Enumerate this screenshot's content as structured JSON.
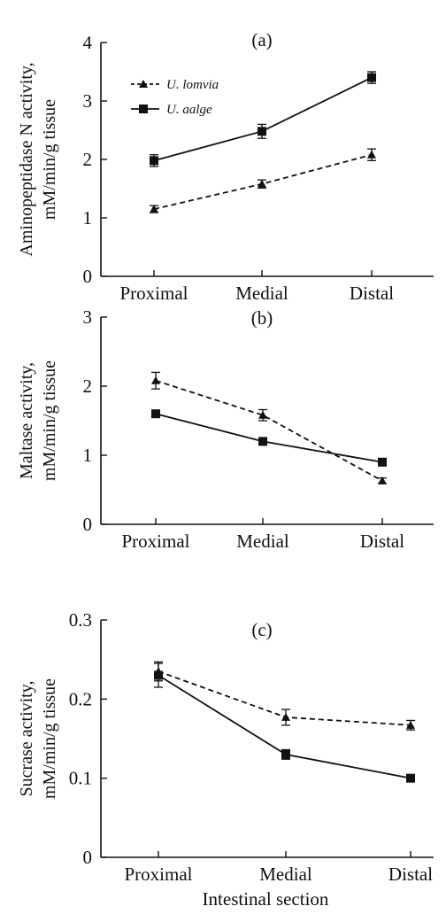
{
  "chart_data": [
    {
      "type": "line",
      "panel_label": "(a)",
      "categories": [
        "Proximal",
        "Medial",
        "Distal"
      ],
      "ylabel_lines": [
        "Aminopeptidase N activity,",
        "mM/min/g tissue"
      ],
      "xlabel": "",
      "ylim": [
        0,
        4
      ],
      "yticks": [
        "0",
        "1",
        "2",
        "3",
        "4"
      ],
      "legend": {
        "position": "top-left"
      },
      "series": [
        {
          "name": "U. lomvia",
          "marker": "triangle",
          "dash": "dashed",
          "values": [
            1.15,
            1.58,
            2.08
          ],
          "errors": [
            0.06,
            0.07,
            0.1
          ]
        },
        {
          "name": "U. aalge",
          "marker": "square",
          "dash": "solid",
          "values": [
            1.98,
            2.48,
            3.4
          ],
          "errors": [
            0.1,
            0.12,
            0.1
          ]
        }
      ]
    },
    {
      "type": "line",
      "panel_label": "(b)",
      "categories": [
        "Proximal",
        "Medial",
        "Distal"
      ],
      "ylabel_lines": [
        "Maltase activity,",
        "mM/min/g tissue"
      ],
      "xlabel": "",
      "ylim": [
        0,
        3
      ],
      "yticks": [
        "0",
        "1",
        "2",
        "3"
      ],
      "series": [
        {
          "name": "",
          "marker": "triangle",
          "dash": "dashed",
          "values": [
            2.08,
            1.58,
            0.63
          ],
          "errors": [
            0.12,
            0.08,
            0.04
          ]
        },
        {
          "name": "",
          "marker": "square",
          "dash": "solid",
          "values": [
            1.6,
            1.2,
            0.9
          ],
          "errors": [
            0.05,
            0.05,
            0.04
          ]
        }
      ]
    },
    {
      "type": "line",
      "panel_label": "(c)",
      "categories": [
        "Proximal",
        "Medial",
        "Distal"
      ],
      "ylabel_lines": [
        "Sucrase activity,",
        "mM/min/g tissue"
      ],
      "xlabel": "Intestinal section",
      "ylim": [
        0,
        0.3
      ],
      "yticks": [
        "0",
        "0.1",
        "0.2",
        "0.3"
      ],
      "series": [
        {
          "name": "",
          "marker": "triangle",
          "dash": "dashed",
          "values": [
            0.235,
            0.177,
            0.167
          ],
          "errors": [
            0.012,
            0.01,
            0.006
          ]
        },
        {
          "name": "",
          "marker": "square",
          "dash": "solid",
          "values": [
            0.23,
            0.13,
            0.1
          ],
          "errors": [
            0.015,
            0.006,
            0.003
          ]
        }
      ]
    }
  ]
}
